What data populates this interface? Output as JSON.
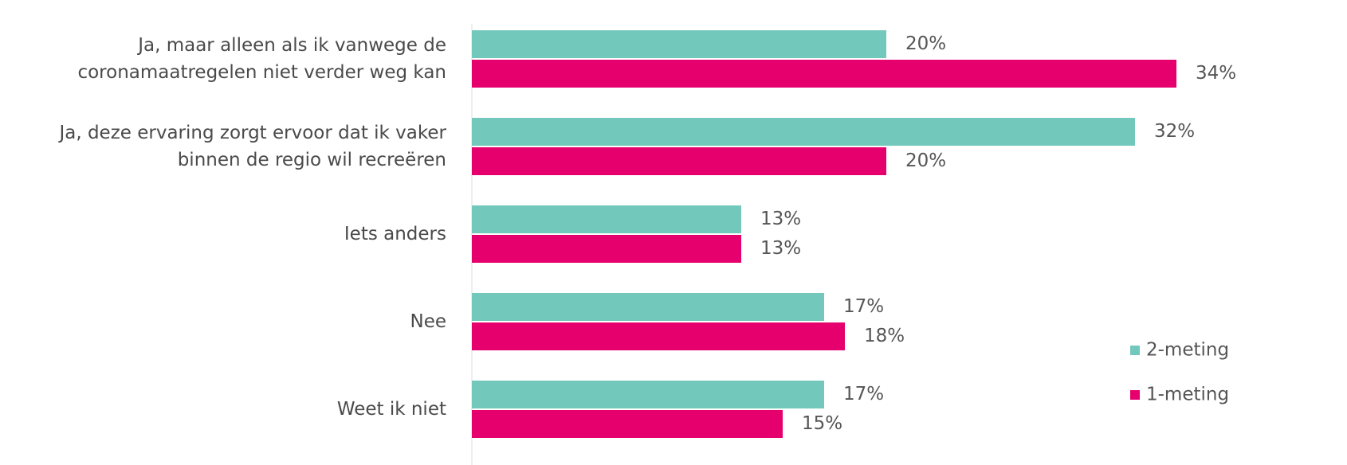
{
  "chart_data": {
    "type": "bar",
    "orientation": "horizontal",
    "categories": [
      "Ja, maar alleen als ik vanwege de coronamaatregelen niet verder weg kan",
      "Ja, deze ervaring zorgt ervoor dat ik vaker binnen de regio wil recreëren",
      "Iets anders",
      "Nee",
      "Weet ik niet"
    ],
    "series": [
      {
        "name": "2-meting",
        "color": "#72c8bb",
        "values": [
          20,
          32,
          13,
          17,
          17
        ],
        "value_labels": [
          "20%",
          "32%",
          "13%",
          "17%",
          "17%"
        ]
      },
      {
        "name": "1-meting",
        "color": "#e5006d",
        "values": [
          34,
          20,
          13,
          18,
          15
        ],
        "value_labels": [
          "34%",
          "20%",
          "13%",
          "18%",
          "15%"
        ]
      }
    ],
    "legend": "right"
  }
}
